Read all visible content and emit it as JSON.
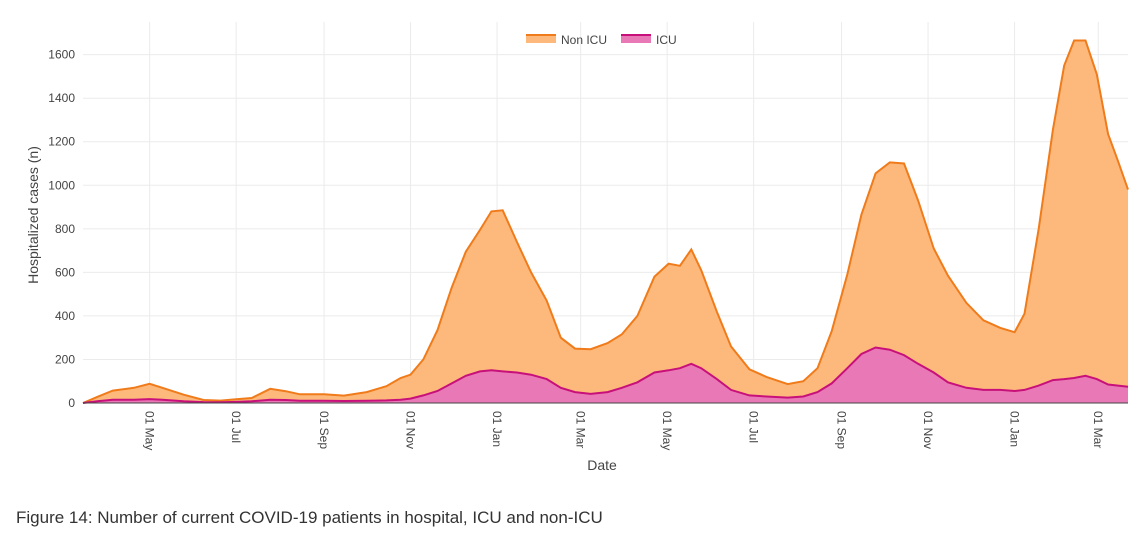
{
  "chart_data": {
    "type": "area",
    "title": "",
    "xlabel": "Date",
    "ylabel": "Hospitalized cases (n)",
    "ylim": [
      0,
      1750
    ],
    "yticks": [
      0,
      200,
      400,
      600,
      800,
      1000,
      1200,
      1400,
      1600
    ],
    "xlim": [
      "2020-03-15",
      "2022-03-22"
    ],
    "xticks": [
      {
        "date": "2020-05-01",
        "label": "01 May"
      },
      {
        "date": "2020-07-01",
        "label": "01 Jul"
      },
      {
        "date": "2020-09-01",
        "label": "01 Sep"
      },
      {
        "date": "2020-11-01",
        "label": "01 Nov"
      },
      {
        "date": "2021-01-01",
        "label": "01 Jan"
      },
      {
        "date": "2021-03-01",
        "label": "01 Mar"
      },
      {
        "date": "2021-05-01",
        "label": "01 May"
      },
      {
        "date": "2021-07-01",
        "label": "01 Jul"
      },
      {
        "date": "2021-09-01",
        "label": "01 Sep"
      },
      {
        "date": "2021-11-01",
        "label": "01 Nov"
      },
      {
        "date": "2022-01-01",
        "label": "01 Jan"
      },
      {
        "date": "2022-03-01",
        "label": "01 Mar"
      }
    ],
    "grid": true,
    "stacked": true,
    "legend_position": "top-center",
    "series": [
      {
        "name": "Non ICU",
        "color": "#f07b1a",
        "fill": "#fdb97c",
        "points": [
          [
            "2020-03-15",
            0
          ],
          [
            "2020-03-25",
            20
          ],
          [
            "2020-04-05",
            42
          ],
          [
            "2020-04-20",
            55
          ],
          [
            "2020-05-01",
            70
          ],
          [
            "2020-05-10",
            55
          ],
          [
            "2020-05-25",
            30
          ],
          [
            "2020-06-08",
            10
          ],
          [
            "2020-06-20",
            8
          ],
          [
            "2020-07-01",
            12
          ],
          [
            "2020-07-12",
            15
          ],
          [
            "2020-07-25",
            50
          ],
          [
            "2020-08-05",
            40
          ],
          [
            "2020-08-15",
            30
          ],
          [
            "2020-09-01",
            30
          ],
          [
            "2020-09-15",
            25
          ],
          [
            "2020-10-01",
            40
          ],
          [
            "2020-10-15",
            65
          ],
          [
            "2020-10-25",
            100
          ],
          [
            "2020-11-01",
            110
          ],
          [
            "2020-11-10",
            165
          ],
          [
            "2020-11-20",
            280
          ],
          [
            "2020-11-30",
            440
          ],
          [
            "2020-12-10",
            570
          ],
          [
            "2020-12-20",
            650
          ],
          [
            "2020-12-28",
            730
          ],
          [
            "2021-01-05",
            740
          ],
          [
            "2021-01-15",
            600
          ],
          [
            "2021-01-25",
            470
          ],
          [
            "2021-02-05",
            360
          ],
          [
            "2021-02-15",
            230
          ],
          [
            "2021-02-25",
            200
          ],
          [
            "2021-03-08",
            205
          ],
          [
            "2021-03-20",
            225
          ],
          [
            "2021-03-30",
            245
          ],
          [
            "2021-04-10",
            305
          ],
          [
            "2021-04-22",
            440
          ],
          [
            "2021-05-02",
            490
          ],
          [
            "2021-05-10",
            470
          ],
          [
            "2021-05-18",
            525
          ],
          [
            "2021-05-25",
            450
          ],
          [
            "2021-06-05",
            310
          ],
          [
            "2021-06-15",
            200
          ],
          [
            "2021-06-28",
            120
          ],
          [
            "2021-07-10",
            90
          ],
          [
            "2021-07-25",
            62
          ],
          [
            "2021-08-05",
            70
          ],
          [
            "2021-08-15",
            110
          ],
          [
            "2021-08-25",
            240
          ],
          [
            "2021-09-05",
            430
          ],
          [
            "2021-09-15",
            640
          ],
          [
            "2021-09-25",
            800
          ],
          [
            "2021-10-05",
            860
          ],
          [
            "2021-10-15",
            880
          ],
          [
            "2021-10-25",
            750
          ],
          [
            "2021-11-05",
            570
          ],
          [
            "2021-11-15",
            490
          ],
          [
            "2021-11-28",
            390
          ],
          [
            "2021-12-10",
            320
          ],
          [
            "2021-12-22",
            285
          ],
          [
            "2022-01-01",
            270
          ],
          [
            "2022-01-08",
            350
          ],
          [
            "2022-01-18",
            720
          ],
          [
            "2022-01-28",
            1150
          ],
          [
            "2022-02-05",
            1440
          ],
          [
            "2022-02-12",
            1550
          ],
          [
            "2022-02-20",
            1540
          ],
          [
            "2022-02-28",
            1400
          ],
          [
            "2022-03-08",
            1150
          ],
          [
            "2022-03-15",
            1030
          ],
          [
            "2022-03-22",
            905
          ]
        ]
      },
      {
        "name": "ICU",
        "color": "#c8107a",
        "fill": "#e979b6",
        "points": [
          [
            "2020-03-15",
            0
          ],
          [
            "2020-03-25",
            8
          ],
          [
            "2020-04-05",
            15
          ],
          [
            "2020-04-20",
            15
          ],
          [
            "2020-05-01",
            18
          ],
          [
            "2020-05-10",
            15
          ],
          [
            "2020-05-25",
            8
          ],
          [
            "2020-06-08",
            4
          ],
          [
            "2020-06-20",
            3
          ],
          [
            "2020-07-01",
            5
          ],
          [
            "2020-07-12",
            8
          ],
          [
            "2020-07-25",
            15
          ],
          [
            "2020-08-05",
            14
          ],
          [
            "2020-08-15",
            10
          ],
          [
            "2020-09-01",
            10
          ],
          [
            "2020-09-15",
            9
          ],
          [
            "2020-10-01",
            10
          ],
          [
            "2020-10-15",
            12
          ],
          [
            "2020-10-25",
            15
          ],
          [
            "2020-11-01",
            20
          ],
          [
            "2020-11-10",
            35
          ],
          [
            "2020-11-20",
            55
          ],
          [
            "2020-11-30",
            90
          ],
          [
            "2020-12-10",
            125
          ],
          [
            "2020-12-20",
            145
          ],
          [
            "2020-12-28",
            150
          ],
          [
            "2021-01-05",
            145
          ],
          [
            "2021-01-15",
            140
          ],
          [
            "2021-01-25",
            130
          ],
          [
            "2021-02-05",
            110
          ],
          [
            "2021-02-15",
            70
          ],
          [
            "2021-02-25",
            50
          ],
          [
            "2021-03-08",
            42
          ],
          [
            "2021-03-20",
            50
          ],
          [
            "2021-03-30",
            70
          ],
          [
            "2021-04-10",
            95
          ],
          [
            "2021-04-22",
            140
          ],
          [
            "2021-05-02",
            150
          ],
          [
            "2021-05-10",
            160
          ],
          [
            "2021-05-18",
            180
          ],
          [
            "2021-05-25",
            160
          ],
          [
            "2021-06-05",
            110
          ],
          [
            "2021-06-15",
            60
          ],
          [
            "2021-06-28",
            35
          ],
          [
            "2021-07-10",
            30
          ],
          [
            "2021-07-25",
            25
          ],
          [
            "2021-08-05",
            30
          ],
          [
            "2021-08-15",
            50
          ],
          [
            "2021-08-25",
            90
          ],
          [
            "2021-09-05",
            160
          ],
          [
            "2021-09-15",
            225
          ],
          [
            "2021-09-25",
            255
          ],
          [
            "2021-10-05",
            245
          ],
          [
            "2021-10-15",
            220
          ],
          [
            "2021-10-25",
            180
          ],
          [
            "2021-11-05",
            140
          ],
          [
            "2021-11-15",
            95
          ],
          [
            "2021-11-28",
            70
          ],
          [
            "2021-12-10",
            60
          ],
          [
            "2021-12-22",
            60
          ],
          [
            "2022-01-01",
            55
          ],
          [
            "2022-01-08",
            60
          ],
          [
            "2022-01-18",
            80
          ],
          [
            "2022-01-28",
            105
          ],
          [
            "2022-02-05",
            110
          ],
          [
            "2022-02-12",
            115
          ],
          [
            "2022-02-20",
            125
          ],
          [
            "2022-02-28",
            110
          ],
          [
            "2022-03-08",
            85
          ],
          [
            "2022-03-15",
            80
          ],
          [
            "2022-03-22",
            75
          ]
        ]
      }
    ]
  },
  "caption": "Figure 14: Number of current COVID-19 patients in hospital, ICU and non-ICU"
}
